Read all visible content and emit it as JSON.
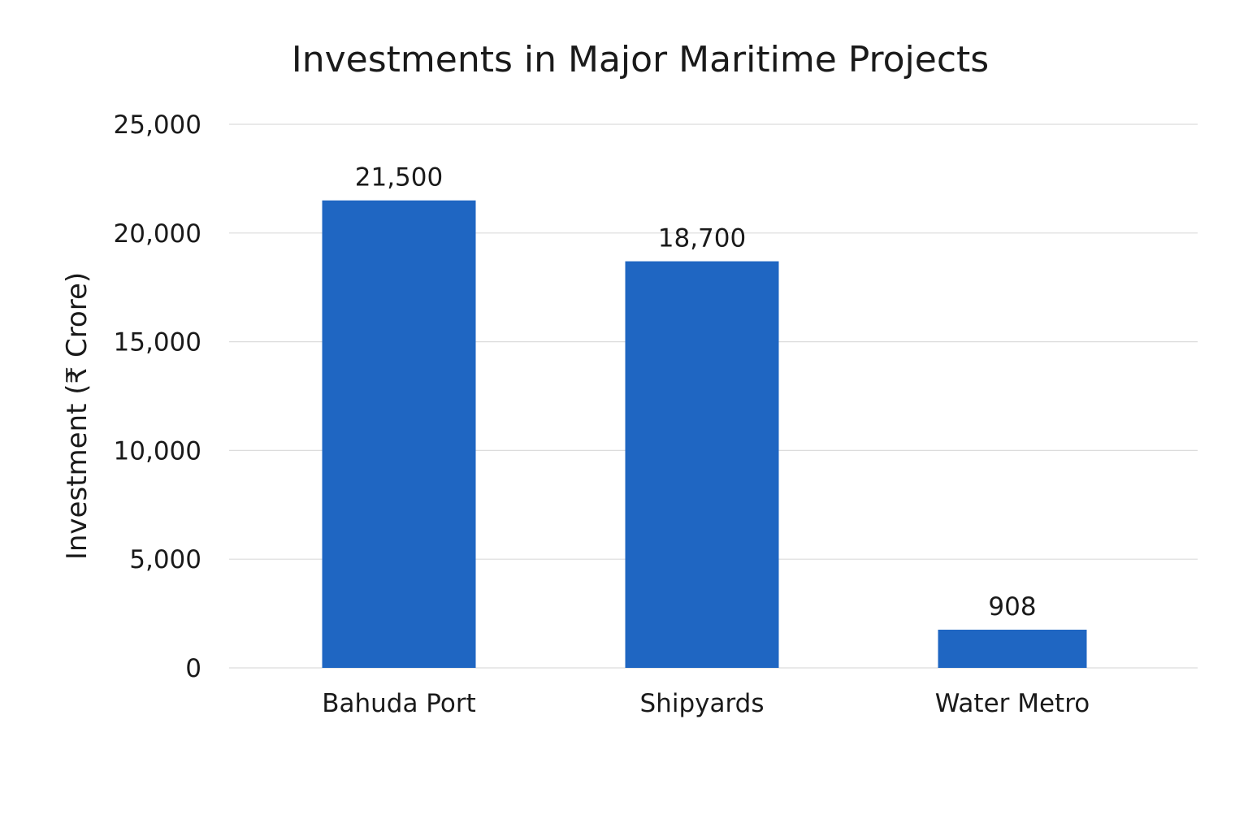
{
  "chart_data": {
    "type": "bar",
    "title": "Investments in Major Maritime Projects",
    "xlabel": "",
    "ylabel": "Investment (₹ Crore)",
    "categories": [
      "Bahuda Port",
      "Shipyards",
      "Water Metro"
    ],
    "values": [
      21500,
      18700,
      908
    ],
    "data_labels": [
      "21,500",
      "18,700",
      "908"
    ],
    "ylim": [
      0,
      25000
    ],
    "yticks": [
      0,
      5000,
      10000,
      15000,
      20000,
      25000
    ],
    "ytick_labels": [
      "0",
      "5,000",
      "10,000",
      "15,000",
      "20,000",
      "25,000"
    ],
    "grid": true,
    "legend": "none",
    "colors": {
      "bar": "#1f66c2",
      "grid": "#dcdcdc",
      "text": "#1a1a1a"
    }
  }
}
